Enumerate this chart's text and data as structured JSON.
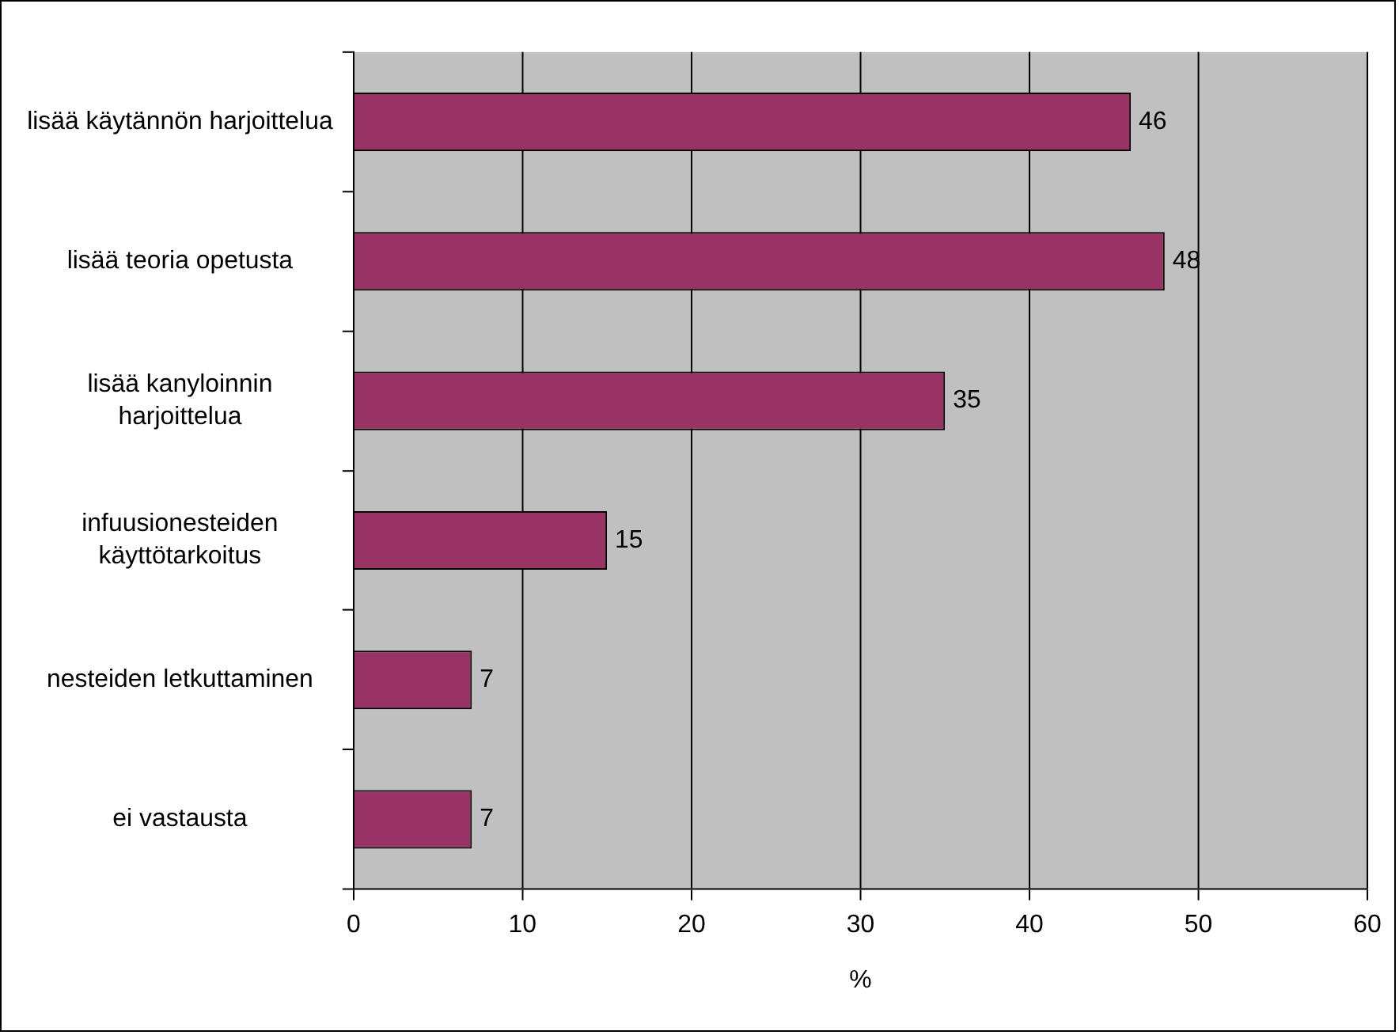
{
  "chart_data": {
    "type": "bar",
    "orientation": "horizontal",
    "xlabel": "%",
    "categories": [
      "lisää käytännön harjoittelua",
      "lisää teoria opetusta",
      "lisää kanyloinnin harjoittelua",
      "infuusionesteiden käyttötarkoitus",
      "nesteiden letkuttaminen",
      "ei vastausta"
    ],
    "values": [
      46,
      48,
      35,
      15,
      7,
      7
    ],
    "color": "#993366",
    "xlim": [
      0,
      60
    ],
    "xticks": [
      0,
      10,
      20,
      30,
      40,
      50,
      60
    ],
    "grid": "x",
    "data_labels": true
  }
}
